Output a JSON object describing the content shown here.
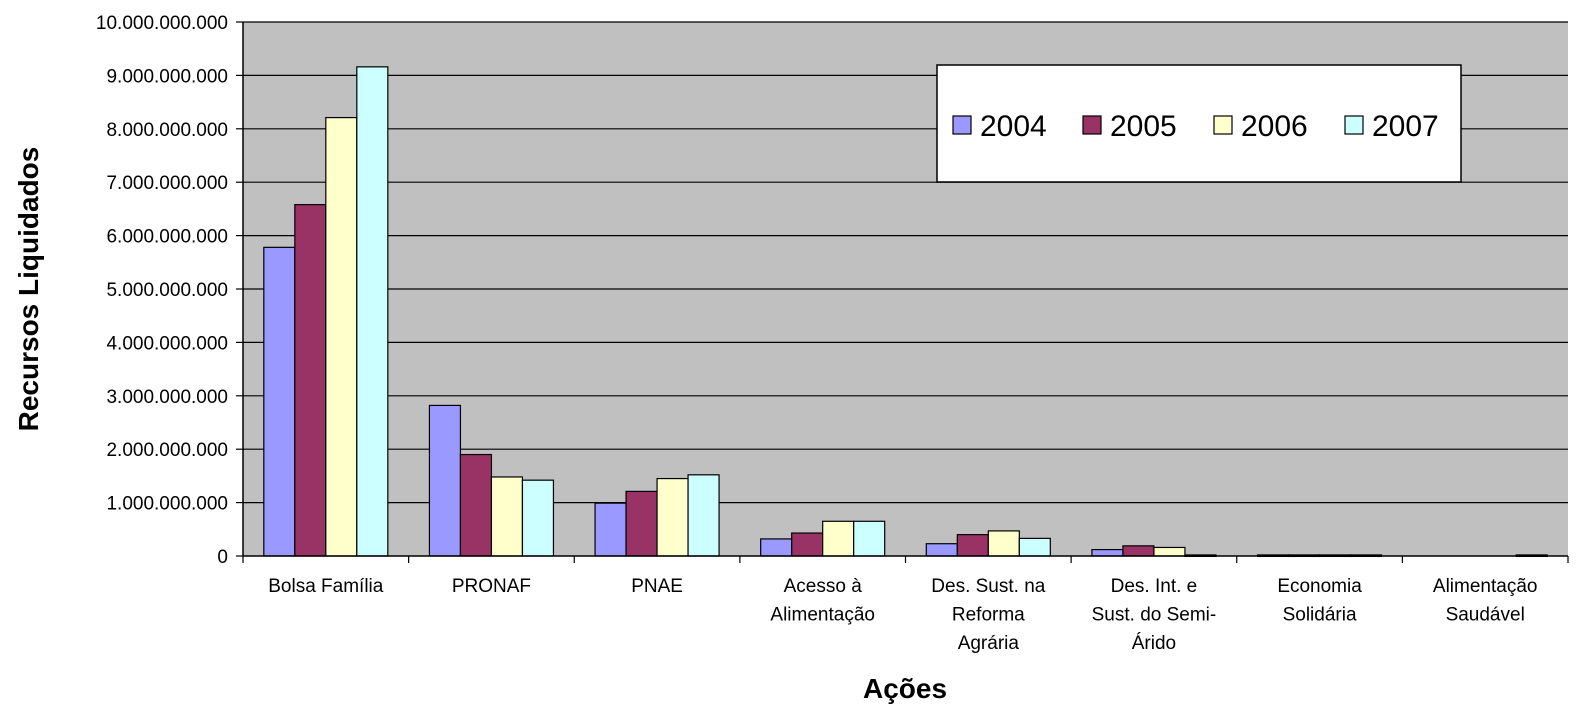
{
  "chart_data": {
    "type": "bar",
    "title": "",
    "xlabel": "Ações",
    "ylabel": "Recursos Liquidados",
    "ylim": [
      0,
      10000000000
    ],
    "yticks": [
      "0",
      "1.000.000.000",
      "2.000.000.000",
      "3.000.000.000",
      "4.000.000.000",
      "5.000.000.000",
      "6.000.000.000",
      "7.000.000.000",
      "8.000.000.000",
      "9.000.000.000",
      "10.000.000.000"
    ],
    "grid": true,
    "legend_position": "top-right",
    "categories": [
      [
        "Bolsa Família"
      ],
      [
        "PRONAF"
      ],
      [
        "PNAE"
      ],
      [
        "Acesso à",
        "Alimentação"
      ],
      [
        "Des. Sust. na",
        "Reforma",
        "Agrária"
      ],
      [
        "Des. Int. e",
        "Sust. do Semi-",
        "Árido"
      ],
      [
        "Economia",
        "Solidária"
      ],
      [
        "Alimentação",
        "Saudável"
      ]
    ],
    "series": [
      {
        "name": "2004",
        "color": "#9999FF",
        "values": [
          5780000000,
          2820000000,
          990000000,
          320000000,
          230000000,
          120000000,
          20000000,
          0
        ]
      },
      {
        "name": "2005",
        "color": "#993366",
        "values": [
          6580000000,
          1900000000,
          1210000000,
          430000000,
          400000000,
          190000000,
          20000000,
          0
        ]
      },
      {
        "name": "2006",
        "color": "#FFFFCC",
        "values": [
          8210000000,
          1480000000,
          1450000000,
          650000000,
          470000000,
          160000000,
          20000000,
          0
        ]
      },
      {
        "name": "2007",
        "color": "#CCFFFF",
        "values": [
          9160000000,
          1420000000,
          1520000000,
          650000000,
          330000000,
          20000000,
          20000000,
          20000000
        ]
      }
    ],
    "plot_background": "#C0C0C0"
  }
}
